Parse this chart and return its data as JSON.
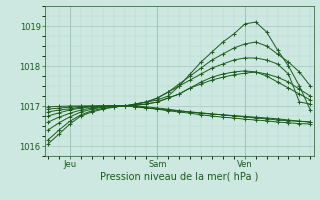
{
  "background_color": "#cce8e0",
  "grid_color_major": "#a0c8be",
  "grid_color_minor": "#b8d8d0",
  "line_color": "#1a5c1a",
  "xlabel": "Pression niveau de la mer( hPa )",
  "ylim": [
    1015.75,
    1019.5
  ],
  "yticks": [
    1016,
    1017,
    1018,
    1019
  ],
  "xtick_labels": [
    "Jeu",
    "Sam",
    "Ven"
  ],
  "xtick_positions": [
    2,
    10,
    18
  ],
  "total_points": 25,
  "series": [
    [
      1016.05,
      1016.3,
      1016.55,
      1016.75,
      1016.85,
      1016.92,
      1016.97,
      1017.0,
      1017.05,
      1017.1,
      1017.15,
      1017.25,
      1017.5,
      1017.8,
      1018.1,
      1018.35,
      1018.6,
      1018.8,
      1019.05,
      1019.1,
      1018.85,
      1018.4,
      1018.0,
      1017.5,
      1016.9
    ],
    [
      1016.15,
      1016.4,
      1016.62,
      1016.78,
      1016.88,
      1016.94,
      1016.98,
      1017.0,
      1017.05,
      1017.1,
      1017.2,
      1017.35,
      1017.55,
      1017.75,
      1017.95,
      1018.15,
      1018.3,
      1018.45,
      1018.55,
      1018.6,
      1018.5,
      1018.3,
      1018.1,
      1017.85,
      1017.5
    ],
    [
      1016.4,
      1016.58,
      1016.73,
      1016.85,
      1016.92,
      1016.97,
      1017.0,
      1017.0,
      1017.05,
      1017.1,
      1017.2,
      1017.35,
      1017.5,
      1017.65,
      1017.8,
      1017.95,
      1018.05,
      1018.15,
      1018.2,
      1018.2,
      1018.15,
      1018.05,
      1017.8,
      1017.1,
      1017.05
    ],
    [
      1016.6,
      1016.72,
      1016.82,
      1016.9,
      1016.95,
      1016.98,
      1017.0,
      1017.0,
      1017.02,
      1017.05,
      1017.1,
      1017.2,
      1017.3,
      1017.45,
      1017.55,
      1017.65,
      1017.72,
      1017.78,
      1017.82,
      1017.85,
      1017.8,
      1017.72,
      1017.6,
      1017.42,
      1017.25
    ],
    [
      1016.75,
      1016.83,
      1016.9,
      1016.95,
      1016.98,
      1017.0,
      1017.0,
      1017.0,
      1017.0,
      1016.98,
      1016.95,
      1016.92,
      1016.88,
      1016.85,
      1016.82,
      1016.8,
      1016.78,
      1016.76,
      1016.74,
      1016.72,
      1016.7,
      1016.68,
      1016.65,
      1016.62,
      1016.6
    ],
    [
      1016.85,
      1016.9,
      1016.93,
      1016.97,
      1016.99,
      1017.0,
      1017.0,
      1017.0,
      1016.98,
      1016.95,
      1016.92,
      1016.88,
      1016.85,
      1016.82,
      1016.78,
      1016.75,
      1016.72,
      1016.7,
      1016.67,
      1016.65,
      1016.63,
      1016.6,
      1016.58,
      1016.56,
      1016.55
    ],
    [
      1016.92,
      1016.95,
      1016.97,
      1016.99,
      1017.0,
      1017.0,
      1017.0,
      1017.0,
      1016.98,
      1016.95,
      1016.93,
      1016.9,
      1016.88,
      1016.85,
      1016.83,
      1016.8,
      1016.78,
      1016.75,
      1016.73,
      1016.7,
      1016.68,
      1016.65,
      1016.63,
      1016.62,
      1016.6
    ],
    [
      1016.98,
      1016.99,
      1017.0,
      1017.0,
      1017.0,
      1017.0,
      1017.0,
      1017.0,
      1017.02,
      1017.05,
      1017.1,
      1017.2,
      1017.3,
      1017.45,
      1017.6,
      1017.72,
      1017.8,
      1017.85,
      1017.88,
      1017.85,
      1017.75,
      1017.6,
      1017.45,
      1017.3,
      1017.15
    ]
  ],
  "vline_positions": [
    2,
    10,
    18
  ],
  "marker": "P",
  "markersize": 2.0,
  "linewidth": 0.7,
  "tick_fontsize": 6,
  "xlabel_fontsize": 7
}
